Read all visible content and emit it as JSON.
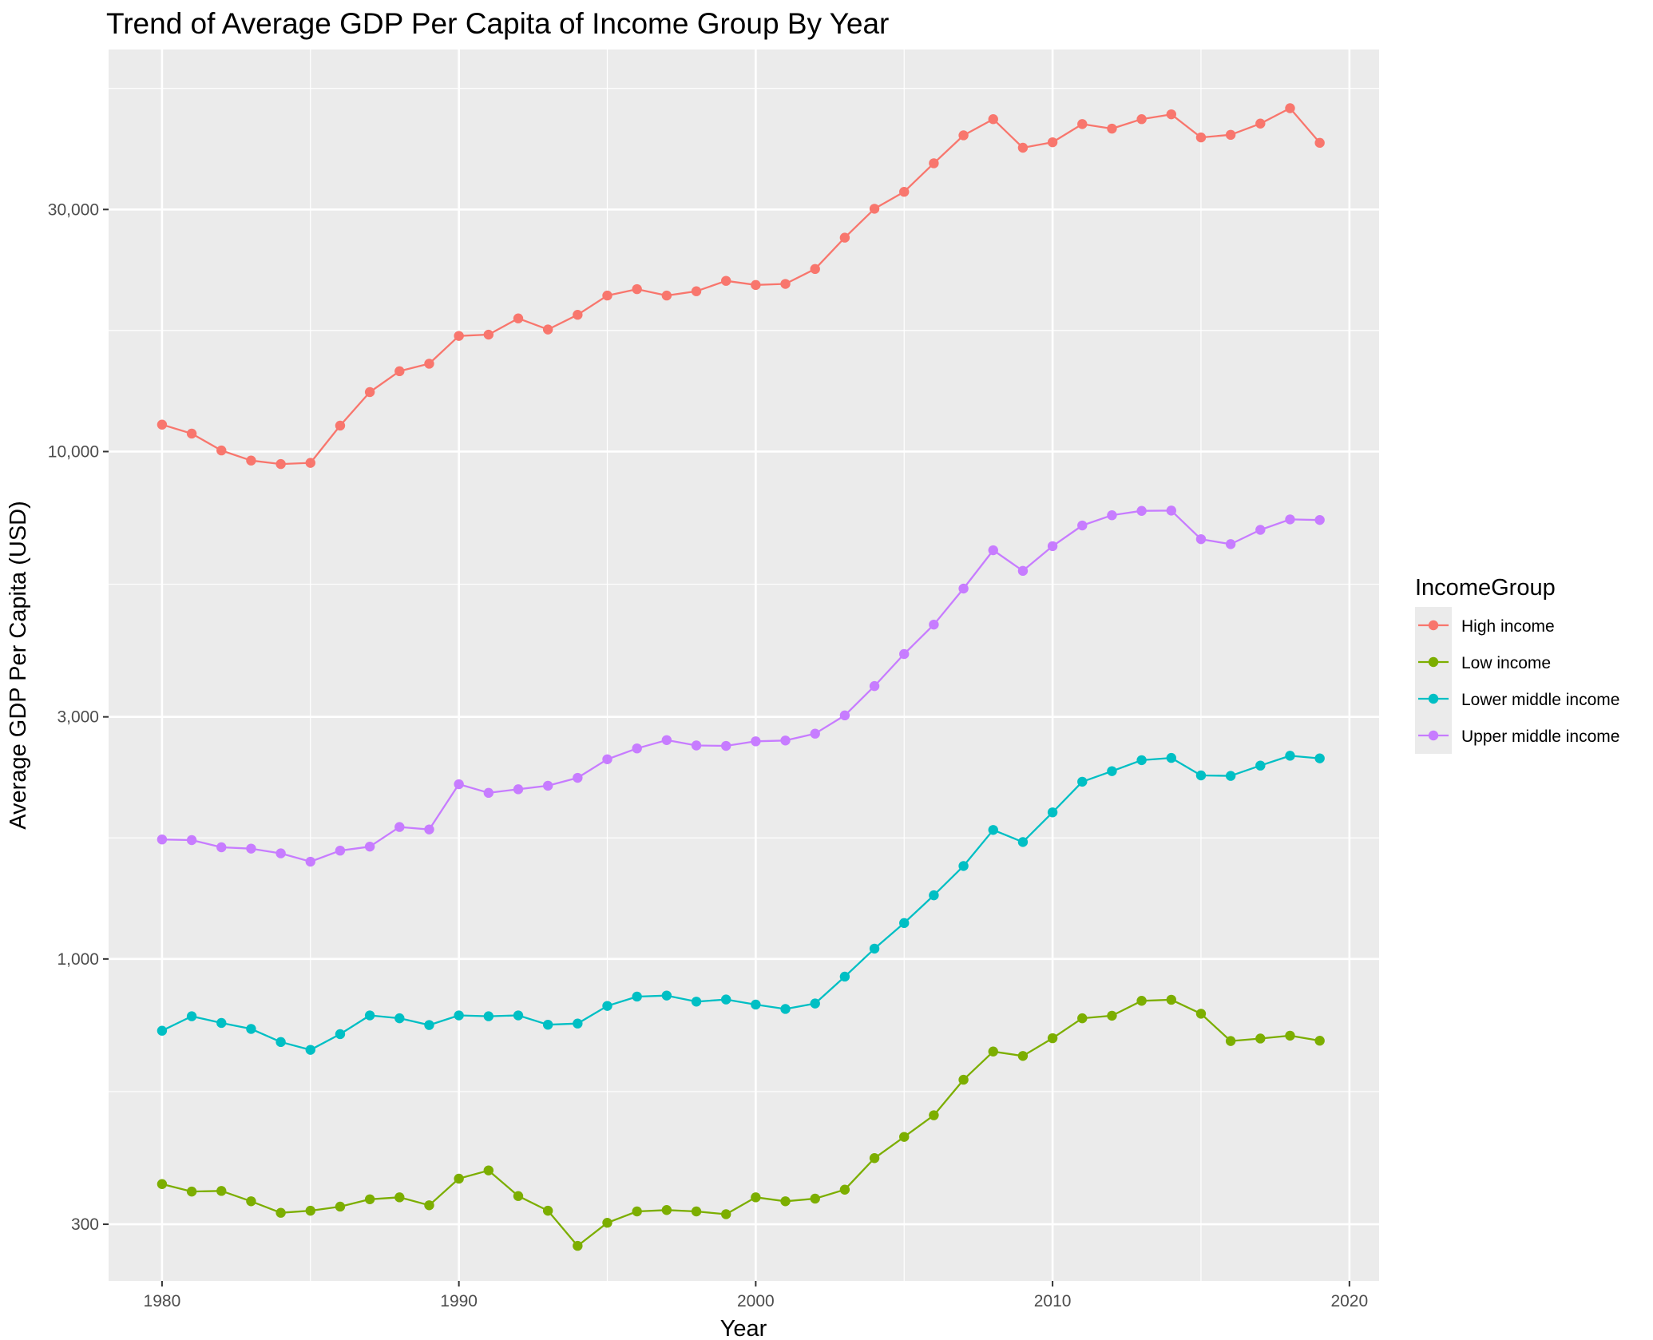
{
  "chart_data": {
    "type": "line",
    "title": "Trend of Average GDP Per Capita of Income Group By Year",
    "xlabel": "Year",
    "ylabel": "Average GDP Per Capita (USD)",
    "y_scale": "log10",
    "xlim": [
      1978.2,
      2021.0
    ],
    "ylim": [
      232,
      62000
    ],
    "x_ticks": [
      1980,
      1990,
      2000,
      2010,
      2020
    ],
    "y_ticks": [
      300,
      1000,
      3000,
      10000,
      30000
    ],
    "y_tick_labels": [
      "300",
      "1,000",
      "3,000",
      "10,000",
      "30,000"
    ],
    "grid": true,
    "legend": {
      "title": "IncomeGroup",
      "position": "right"
    },
    "x": [
      1980,
      1981,
      1982,
      1983,
      1984,
      1985,
      1986,
      1987,
      1988,
      1989,
      1990,
      1991,
      1992,
      1993,
      1994,
      1995,
      1996,
      1997,
      1998,
      1999,
      2000,
      2001,
      2002,
      2003,
      2004,
      2005,
      2006,
      2007,
      2008,
      2009,
      2010,
      2011,
      2012,
      2013,
      2014,
      2015,
      2016,
      2017,
      2018,
      2019
    ],
    "series": [
      {
        "name": "High income",
        "color": "#F8766D",
        "values": [
          11300,
          10850,
          10050,
          9600,
          9450,
          9500,
          11250,
          13100,
          14400,
          14900,
          16900,
          17000,
          18300,
          17400,
          18600,
          20300,
          20900,
          20300,
          20700,
          21700,
          21300,
          21400,
          22900,
          26400,
          30100,
          32500,
          37000,
          42000,
          45200,
          39700,
          40700,
          44200,
          43300,
          45200,
          46200,
          41600,
          42100,
          44300,
          47500,
          40600
        ]
      },
      {
        "name": "Low income",
        "color": "#7CAE00",
        "values": [
          360,
          348,
          349,
          333,
          316,
          319,
          325,
          336,
          339,
          327,
          369,
          383,
          341,
          319,
          272,
          302,
          318,
          320,
          318,
          314,
          339,
          333,
          337,
          351,
          405,
          446,
          492,
          578,
          657,
          644,
          698,
          764,
          773,
          827,
          831,
          780,
          689,
          697,
          706,
          690
        ]
      },
      {
        "name": "Lower middle income",
        "color": "#00BFC4",
        "values": [
          722,
          771,
          748,
          728,
          686,
          662,
          711,
          774,
          764,
          741,
          774,
          771,
          774,
          742,
          746,
          808,
          843,
          847,
          824,
          832,
          813,
          797,
          817,
          923,
          1048,
          1177,
          1335,
          1525,
          1796,
          1700,
          1945,
          2235,
          2345,
          2465,
          2490,
          2300,
          2295,
          2405,
          2515,
          2485
        ]
      },
      {
        "name": "Upper middle income",
        "color": "#C77CFF",
        "values": [
          1720,
          1715,
          1660,
          1650,
          1615,
          1555,
          1635,
          1665,
          1820,
          1800,
          2210,
          2125,
          2160,
          2195,
          2275,
          2475,
          2600,
          2700,
          2635,
          2630,
          2685,
          2695,
          2780,
          3020,
          3450,
          3990,
          4560,
          5370,
          6390,
          5820,
          6510,
          7150,
          7490,
          7640,
          7650,
          6720,
          6570,
          7010,
          7350,
          7330
        ]
      }
    ]
  }
}
